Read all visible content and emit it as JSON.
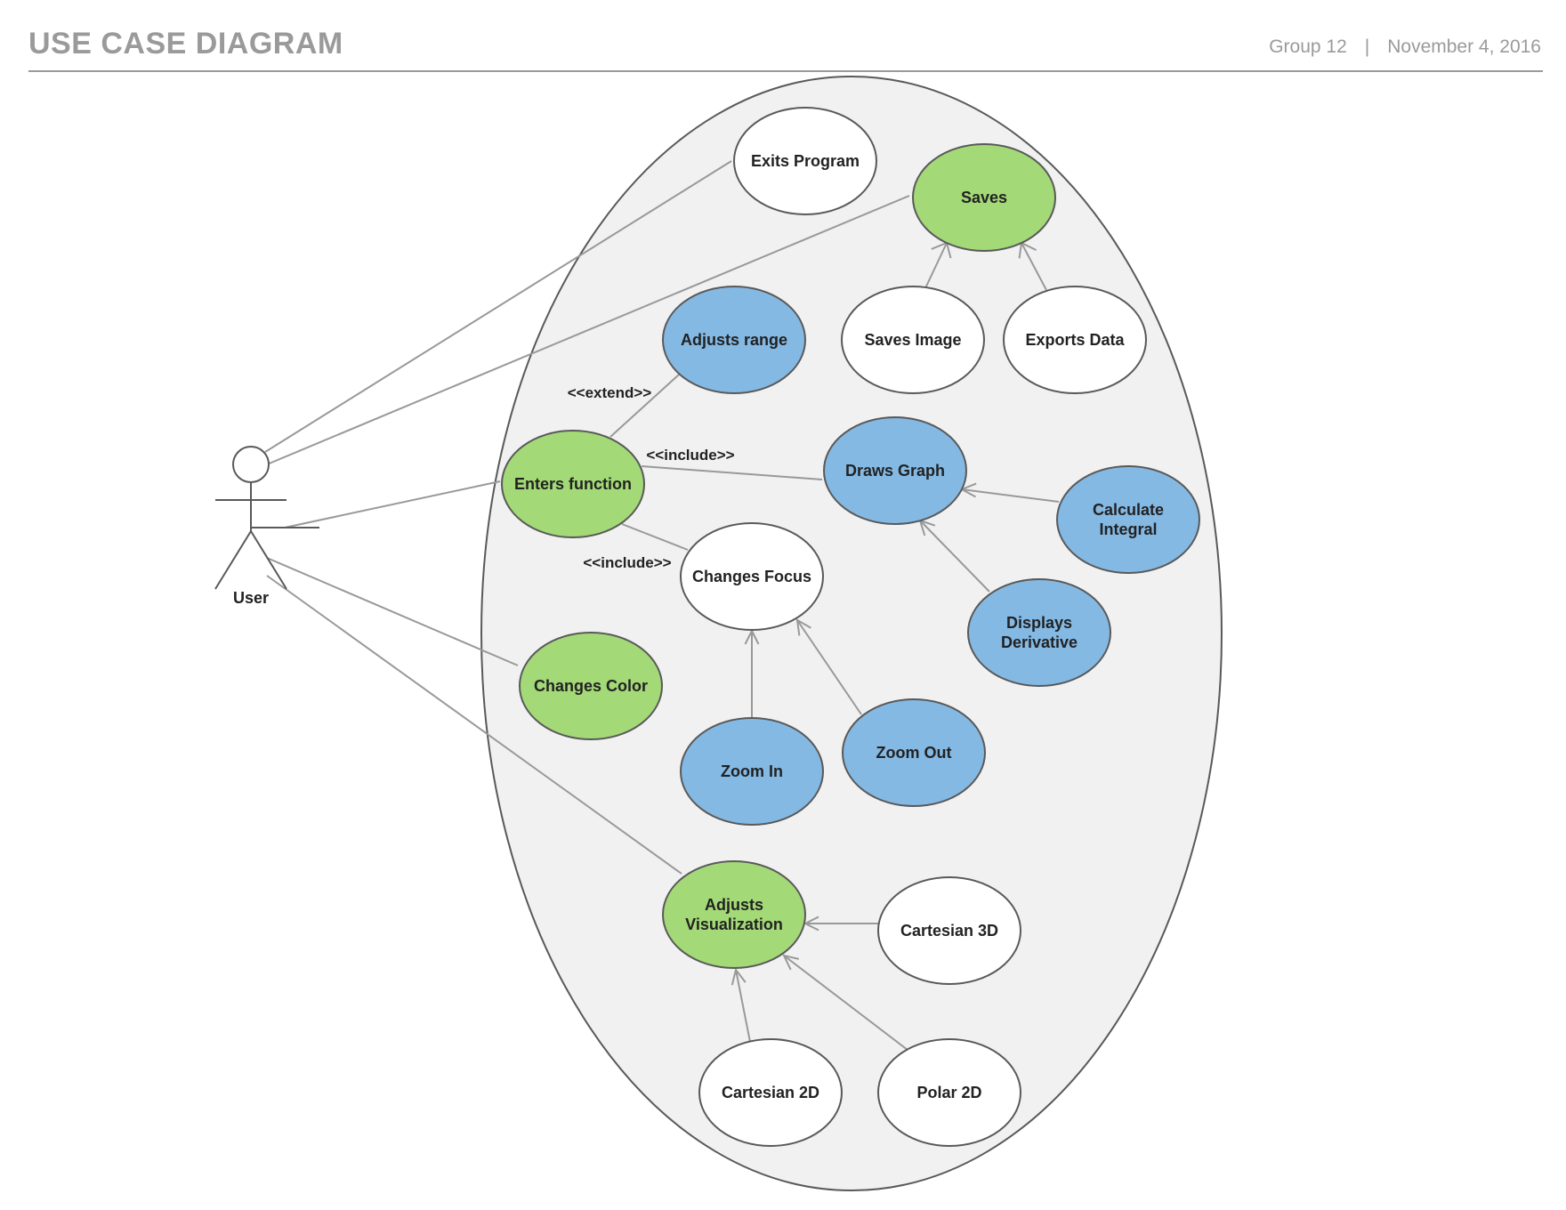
{
  "header": {
    "title": "USE CASE DIAGRAM",
    "group": "Group 12",
    "separator": "|",
    "date": "November 4, 2016"
  },
  "colors": {
    "green": "#a3d977",
    "blue": "#84b9e4",
    "white": "#ffffff",
    "boundary_fill": "#f1f1f1",
    "outline": "#595959",
    "connector": "#999999",
    "header_text": "#9a9a9a"
  },
  "actor": {
    "label": "User"
  },
  "use_cases": {
    "exits_program": {
      "lines": [
        "Exits Program"
      ],
      "color": "white"
    },
    "saves": {
      "lines": [
        "Saves"
      ],
      "color": "green"
    },
    "adjusts_range": {
      "lines": [
        "Adjusts range"
      ],
      "color": "blue"
    },
    "saves_image": {
      "lines": [
        "Saves Image"
      ],
      "color": "white"
    },
    "exports_data": {
      "lines": [
        "Exports Data"
      ],
      "color": "white"
    },
    "enters_function": {
      "lines": [
        "Enters function"
      ],
      "color": "green"
    },
    "draws_graph": {
      "lines": [
        "Draws Graph"
      ],
      "color": "blue"
    },
    "calculate_integral": {
      "lines": [
        "Calculate",
        "Integral"
      ],
      "color": "blue"
    },
    "changes_focus": {
      "lines": [
        "Changes Focus"
      ],
      "color": "white"
    },
    "displays_derivative": {
      "lines": [
        "Displays",
        "Derivative"
      ],
      "color": "blue"
    },
    "changes_color": {
      "lines": [
        "Changes Color"
      ],
      "color": "green"
    },
    "zoom_in": {
      "lines": [
        "Zoom In"
      ],
      "color": "blue"
    },
    "zoom_out": {
      "lines": [
        "Zoom Out"
      ],
      "color": "blue"
    },
    "adjusts_visualization": {
      "lines": [
        "Adjusts",
        "Visualization"
      ],
      "color": "green"
    },
    "cartesian_3d": {
      "lines": [
        "Cartesian 3D"
      ],
      "color": "white"
    },
    "cartesian_2d": {
      "lines": [
        "Cartesian 2D"
      ],
      "color": "white"
    },
    "polar_2d": {
      "lines": [
        "Polar 2D"
      ],
      "color": "white"
    }
  },
  "stereotypes": {
    "extend": "<<extend>>",
    "include_draws": "<<include>>",
    "include_focus": "<<include>>"
  },
  "relations": {
    "associations": [
      "exits_program",
      "saves",
      "enters_function",
      "changes_color",
      "adjusts_visualization"
    ],
    "generalizations": [
      [
        "saves_image",
        "saves"
      ],
      [
        "exports_data",
        "saves"
      ],
      [
        "calculate_integral",
        "draws_graph"
      ],
      [
        "displays_derivative",
        "draws_graph"
      ],
      [
        "zoom_in",
        "changes_focus"
      ],
      [
        "zoom_out",
        "changes_focus"
      ],
      [
        "cartesian_3d",
        "adjusts_visualization"
      ],
      [
        "cartesian_2d",
        "adjusts_visualization"
      ],
      [
        "polar_2d",
        "adjusts_visualization"
      ]
    ],
    "dependencies": [
      [
        "enters_function",
        "adjusts_range",
        "extend"
      ],
      [
        "enters_function",
        "draws_graph",
        "include_draws"
      ],
      [
        "enters_function",
        "changes_focus",
        "include_focus"
      ]
    ]
  }
}
